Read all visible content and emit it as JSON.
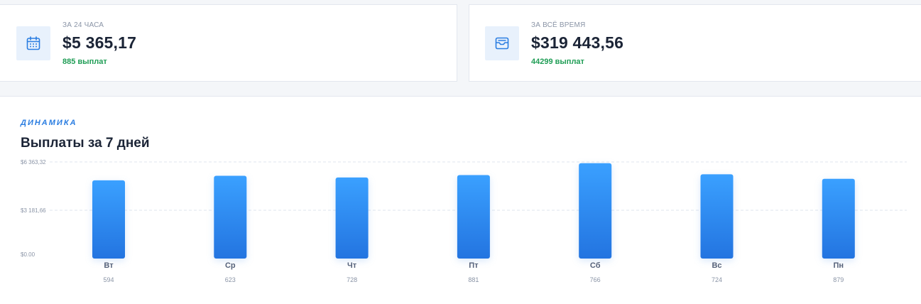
{
  "cards": [
    {
      "id": "24h",
      "icon": "calendar-icon",
      "label": "ЗА 24 ЧАСА",
      "value": "$5 365,17",
      "sub": "885 выплат"
    },
    {
      "id": "all",
      "icon": "inbox-icon",
      "label": "ЗА ВСЁ ВРЕМЯ",
      "value": "$319 443,56",
      "sub": "44299 выплат"
    }
  ],
  "colors": {
    "accent": "#2a7de1",
    "positive": "#1f9d55",
    "bar_top": "#3aa0ff",
    "bar_bottom": "#2374e0"
  },
  "chart": {
    "eyebrow": "ДИНАМИКА",
    "title": "Выплаты за 7 дней"
  },
  "chart_data": {
    "type": "bar",
    "categories": [
      "Вт",
      "Ср",
      "Чт",
      "Пт",
      "Сб",
      "Вс",
      "Пн"
    ],
    "counts": [
      "594",
      "623",
      "728",
      "881",
      "766",
      "724",
      "879"
    ],
    "values": [
      5150,
      5450,
      5340,
      5500,
      6280,
      5550,
      5250
    ],
    "ylim": [
      0,
      6363.32
    ],
    "yticks": [
      {
        "value": 6363.32,
        "label": "$6 363,32"
      },
      {
        "value": 3181.66,
        "label": "$3 181,66"
      },
      {
        "value": 0,
        "label": "$0.00"
      }
    ],
    "grid": true
  }
}
